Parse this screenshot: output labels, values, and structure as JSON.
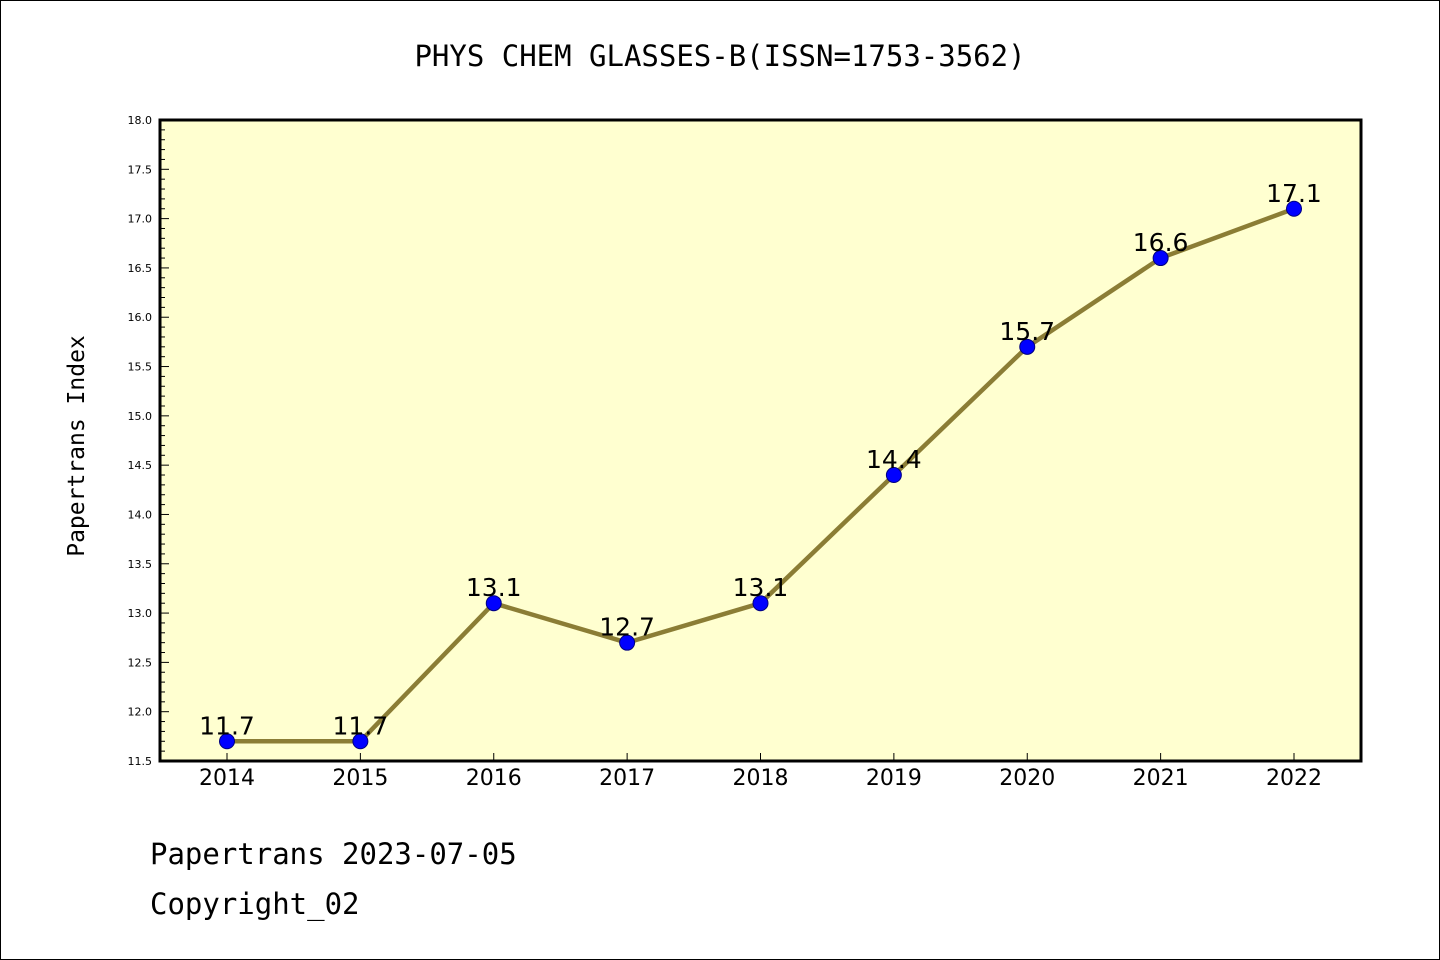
{
  "chart_data": {
    "type": "line",
    "title": "PHYS CHEM GLASSES-B(ISSN=1753-3562)",
    "ylabel": "Papertrans Index",
    "xlabel": "",
    "categories": [
      "2014",
      "2015",
      "2016",
      "2017",
      "2018",
      "2019",
      "2020",
      "2021",
      "2022"
    ],
    "series": [
      {
        "values": [
          11.7,
          11.7,
          13.1,
          12.7,
          13.1,
          14.4,
          15.7,
          16.6,
          17.1
        ],
        "labels": [
          "11.7",
          "11.7",
          "13.1",
          "12.7",
          "13.1",
          "14.4",
          "15.7",
          "16.6",
          "17.1"
        ]
      }
    ],
    "ylim": [
      11.5,
      18.0
    ],
    "yticks": [
      "11.5",
      "12.0",
      "12.5",
      "13.0",
      "13.5",
      "14.0",
      "14.5",
      "15.0",
      "15.5",
      "16.0",
      "16.5",
      "17.0",
      "17.5",
      "18.0"
    ],
    "grid": false,
    "colors": {
      "plot_background": "#ffffd0",
      "line": "#8b7d35",
      "marker_fill": "#0000ff",
      "marker_edge": "#000080"
    }
  },
  "footer": {
    "line1": "Papertrans 2023-07-05",
    "line2": "Copyright_02"
  }
}
